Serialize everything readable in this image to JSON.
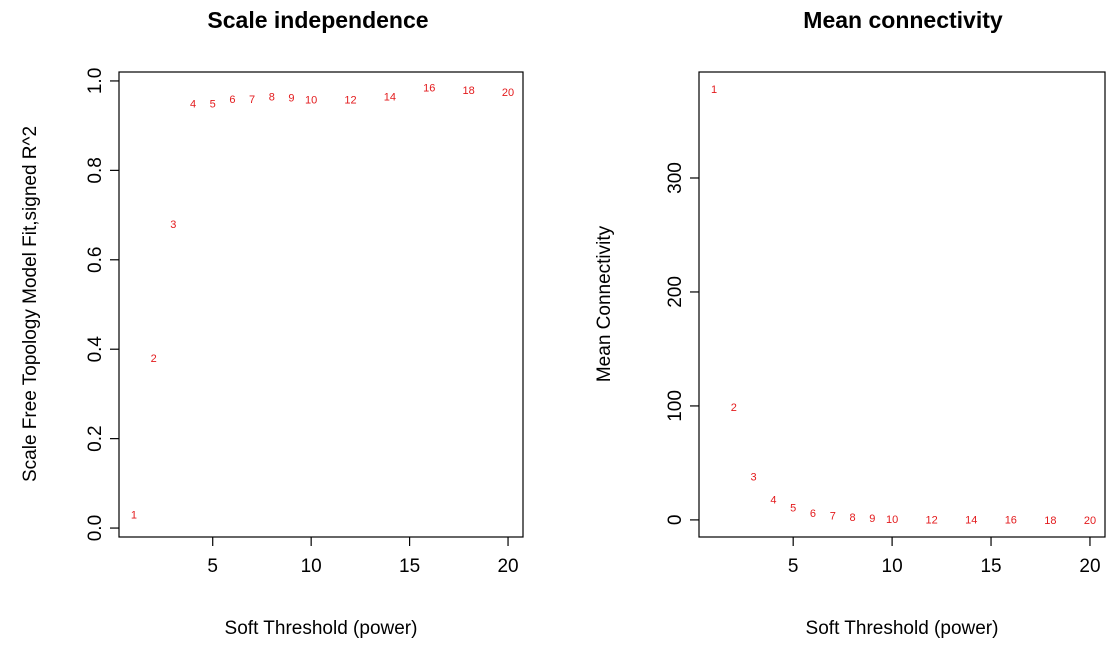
{
  "chart_data": [
    {
      "type": "scatter",
      "title": "Scale independence",
      "xlabel": "Soft Threshold (power)",
      "ylabel": "Scale Free Topology Model Fit,signed R^2",
      "xlim": [
        0.24,
        20.76
      ],
      "ylim": [
        -0.02,
        1.02
      ],
      "xticks": [
        "5",
        "10",
        "15",
        "20"
      ],
      "xtick_values": [
        5,
        10,
        15,
        20
      ],
      "yticks": [
        "0.0",
        "0.2",
        "0.4",
        "0.6",
        "0.8",
        "1.0"
      ],
      "ytick_values": [
        0,
        0.2,
        0.4,
        0.6,
        0.8,
        1.0
      ],
      "point_color": "#e31a1c",
      "points": [
        {
          "x": 1,
          "y": 0.03,
          "label": "1"
        },
        {
          "x": 2,
          "y": 0.38,
          "label": "2"
        },
        {
          "x": 3,
          "y": 0.68,
          "label": "3"
        },
        {
          "x": 4,
          "y": 0.95,
          "label": "4"
        },
        {
          "x": 5,
          "y": 0.95,
          "label": "5"
        },
        {
          "x": 6,
          "y": 0.96,
          "label": "6"
        },
        {
          "x": 7,
          "y": 0.96,
          "label": "7"
        },
        {
          "x": 8,
          "y": 0.965,
          "label": "8"
        },
        {
          "x": 9,
          "y": 0.963,
          "label": "9"
        },
        {
          "x": 10,
          "y": 0.958,
          "label": "10"
        },
        {
          "x": 12,
          "y": 0.958,
          "label": "12"
        },
        {
          "x": 14,
          "y": 0.965,
          "label": "14"
        },
        {
          "x": 16,
          "y": 0.985,
          "label": "16"
        },
        {
          "x": 18,
          "y": 0.98,
          "label": "18"
        },
        {
          "x": 20,
          "y": 0.975,
          "label": "20"
        }
      ]
    },
    {
      "type": "scatter",
      "title": "Mean connectivity",
      "xlabel": "Soft Threshold (power)",
      "ylabel": "Mean Connectivity",
      "xlim": [
        0.24,
        20.76
      ],
      "ylim": [
        -15,
        393
      ],
      "xticks": [
        "5",
        "10",
        "15",
        "20"
      ],
      "xtick_values": [
        5,
        10,
        15,
        20
      ],
      "yticks": [
        "0",
        "100",
        "200",
        "300"
      ],
      "ytick_values": [
        0,
        100,
        200,
        300
      ],
      "point_color": "#e31a1c",
      "points": [
        {
          "x": 1,
          "y": 378,
          "label": "1"
        },
        {
          "x": 2,
          "y": 99,
          "label": "2"
        },
        {
          "x": 3,
          "y": 38,
          "label": "3"
        },
        {
          "x": 4,
          "y": 18,
          "label": "4"
        },
        {
          "x": 5,
          "y": 11,
          "label": "5"
        },
        {
          "x": 6,
          "y": 6,
          "label": "6"
        },
        {
          "x": 7,
          "y": 4,
          "label": "7"
        },
        {
          "x": 8,
          "y": 2.5,
          "label": "8"
        },
        {
          "x": 9,
          "y": 1.5,
          "label": "9"
        },
        {
          "x": 10,
          "y": 1,
          "label": "10"
        },
        {
          "x": 12,
          "y": 0.5,
          "label": "12"
        },
        {
          "x": 14,
          "y": 0.3,
          "label": "14"
        },
        {
          "x": 16,
          "y": 0.2,
          "label": "16"
        },
        {
          "x": 18,
          "y": 0.1,
          "label": "18"
        },
        {
          "x": 20,
          "y": 0.05,
          "label": "20"
        }
      ]
    }
  ]
}
